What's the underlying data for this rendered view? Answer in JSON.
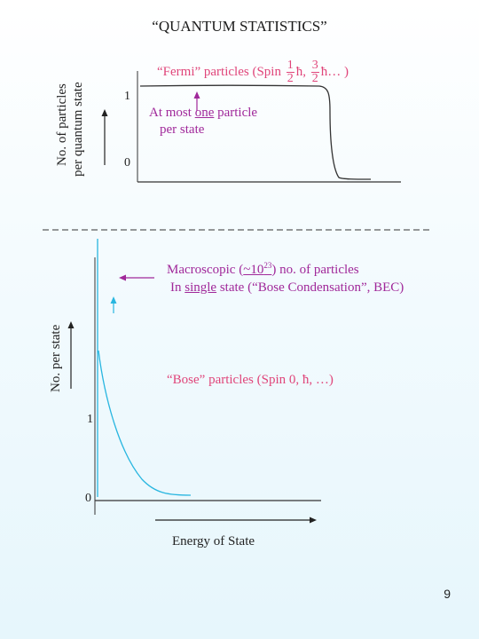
{
  "title": "“QUANTUM STATISTICS”",
  "fermi": {
    "ylabel_line1": "No. of particles",
    "ylabel_line2": "per quantum state",
    "tick_one": "1",
    "tick_zero": "0",
    "label_prefix": "“Fermi” particles (Spin",
    "frac1_num": "1",
    "frac1_den": "2",
    "hbar1": "ħ,",
    "frac2_num": "3",
    "frac2_den": "2",
    "label_suffix": "ħ… )",
    "note_prefix": "At most",
    "note_emphasis": "one",
    "note_suffix": "particle",
    "note_line2": "per state"
  },
  "bose": {
    "ylabel": "No. per state",
    "tick_one": "1",
    "tick_zero": "0",
    "xlabel": "Energy of State",
    "macro_prefix": "Macroscopic (",
    "macro_approx": "~10",
    "macro_exp": "23",
    "macro_suffix": ") no. of particles",
    "single_prefix": "In",
    "single_emphasis": "single",
    "single_suffix": "state (“Bose Condensation”, BEC)",
    "label": "“Bose” particles (Spin 0, ħ, …)"
  },
  "colors": {
    "pink": "#e0457a",
    "purple": "#a0289a",
    "cyan": "#29b6e0",
    "axis": "#222222"
  },
  "page_number": "9"
}
